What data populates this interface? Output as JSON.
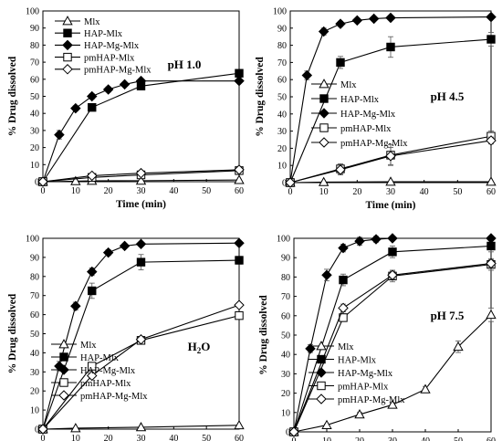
{
  "chart_data": [
    {
      "type": "line",
      "xlabel": "Time (min)",
      "ylabel": "% Drug dissolved",
      "annotation": "pH 1.0",
      "xlim": [
        0,
        60
      ],
      "ylim": [
        0,
        100
      ],
      "xticks": [
        0,
        10,
        20,
        30,
        40,
        50,
        60
      ],
      "yticks": [
        0,
        10,
        20,
        30,
        40,
        50,
        60,
        70,
        80,
        90,
        100
      ],
      "legend_position": "top-left",
      "series": [
        {
          "name": "Mlx",
          "marker": "triangle-open",
          "x": [
            0,
            10,
            15,
            30,
            60
          ],
          "y": [
            0,
            0.3,
            0.5,
            0.6,
            1.0
          ],
          "err": [
            0,
            0,
            0,
            0,
            0
          ]
        },
        {
          "name": "HAP-Mlx",
          "marker": "square-filled",
          "x": [
            0,
            15,
            30,
            60
          ],
          "y": [
            0,
            43.5,
            56,
            63.5
          ],
          "err": [
            0,
            1.5,
            2,
            1.5
          ]
        },
        {
          "name": "HAP-Mg-Mlx",
          "marker": "diamond-filled",
          "x": [
            0,
            5,
            10,
            15,
            20,
            25,
            30,
            60
          ],
          "y": [
            0,
            27.5,
            43,
            50,
            54,
            57,
            59,
            59
          ],
          "err": [
            0,
            2.5,
            1.5,
            1.5,
            1.5,
            1,
            1,
            1
          ]
        },
        {
          "name": "pmHAP-Mlx",
          "marker": "square-open",
          "x": [
            0,
            15,
            30,
            60
          ],
          "y": [
            0,
            2.5,
            4,
            6.5
          ],
          "err": [
            0,
            0.5,
            0.5,
            0.5
          ]
        },
        {
          "name": "pmHAP-Mg-Mlx",
          "marker": "diamond-open",
          "x": [
            0,
            15,
            30,
            60
          ],
          "y": [
            0,
            3.5,
            5,
            7
          ],
          "err": [
            0,
            0.5,
            0.5,
            0.5
          ]
        }
      ]
    },
    {
      "type": "line",
      "xlabel": "Time (min)",
      "ylabel": "% Drug dissolved",
      "annotation": "pH 4.5",
      "xlim": [
        0,
        60
      ],
      "ylim": [
        0,
        100
      ],
      "xticks": [
        0,
        10,
        20,
        30,
        40,
        50,
        60
      ],
      "yticks": [
        0,
        10,
        20,
        30,
        40,
        50,
        60,
        70,
        80,
        90,
        100
      ],
      "legend_position": "right",
      "series": [
        {
          "name": "Mlx",
          "marker": "triangle-open",
          "x": [
            0,
            10,
            30,
            60
          ],
          "y": [
            0,
            0.3,
            0.5,
            0.5
          ],
          "err": [
            0,
            0,
            0,
            0
          ]
        },
        {
          "name": "HAP-Mlx",
          "marker": "square-filled",
          "x": [
            0,
            15,
            30,
            60
          ],
          "y": [
            0,
            70,
            79,
            83.5
          ],
          "err": [
            0,
            3.5,
            6,
            4
          ]
        },
        {
          "name": "HAP-Mg-Mlx",
          "marker": "diamond-filled",
          "x": [
            0,
            5,
            10,
            15,
            20,
            25,
            30,
            60
          ],
          "y": [
            0,
            62.5,
            88,
            92.5,
            94.5,
            95.5,
            96,
            96.5
          ],
          "err": [
            0,
            2.5,
            2,
            1.5,
            1,
            1,
            1,
            1
          ]
        },
        {
          "name": "pmHAP-Mlx",
          "marker": "square-open",
          "x": [
            0,
            15,
            30,
            60
          ],
          "y": [
            0,
            8,
            16,
            27
          ],
          "err": [
            0,
            3,
            6,
            3
          ]
        },
        {
          "name": "pmHAP-Mg-Mlx",
          "marker": "diamond-open",
          "x": [
            0,
            15,
            30,
            60
          ],
          "y": [
            0,
            7.5,
            15.5,
            24.5
          ],
          "err": [
            0,
            3,
            5,
            2
          ]
        }
      ]
    },
    {
      "type": "line",
      "xlabel": "Time (min)",
      "ylabel": "% Drug dissolved",
      "annotation": "H2O",
      "xlim": [
        0,
        60
      ],
      "ylim": [
        0,
        100
      ],
      "xticks": [
        0,
        10,
        20,
        30,
        40,
        50,
        60
      ],
      "yticks": [
        0,
        10,
        20,
        30,
        40,
        50,
        60,
        70,
        80,
        90,
        100
      ],
      "legend_position": "bottom-right",
      "series": [
        {
          "name": "Mlx",
          "marker": "triangle-open",
          "x": [
            0,
            10,
            30,
            60
          ],
          "y": [
            0,
            0.5,
            1,
            2
          ],
          "err": [
            0,
            0,
            0,
            0
          ]
        },
        {
          "name": "HAP-Mlx",
          "marker": "square-filled",
          "x": [
            0,
            15,
            30,
            60
          ],
          "y": [
            0,
            72.5,
            87.5,
            88.5
          ],
          "err": [
            0,
            4,
            4,
            2
          ]
        },
        {
          "name": "HAP-Mg-Mlx",
          "marker": "diamond-filled",
          "x": [
            0,
            5,
            10,
            15,
            20,
            25,
            30,
            60
          ],
          "y": [
            0,
            33,
            64.5,
            82.5,
            92.5,
            96,
            97,
            97.5
          ],
          "err": [
            0,
            2.5,
            2,
            2,
            1.5,
            1,
            1,
            1
          ]
        },
        {
          "name": "pmHAP-Mlx",
          "marker": "square-open",
          "x": [
            0,
            15,
            30,
            60
          ],
          "y": [
            0,
            33,
            46.5,
            59.5
          ],
          "err": [
            0,
            1,
            1,
            1
          ]
        },
        {
          "name": "pmHAP-Mg-Mlx",
          "marker": "diamond-open",
          "x": [
            0,
            15,
            30,
            60
          ],
          "y": [
            0,
            28,
            47,
            65
          ],
          "err": [
            0,
            1,
            1,
            1
          ]
        }
      ]
    },
    {
      "type": "line",
      "xlabel": "Time (min)",
      "ylabel": "% Drug dissolved",
      "annotation": "pH 7.5",
      "xlim": [
        0,
        60
      ],
      "ylim": [
        0,
        100
      ],
      "xticks": [
        0,
        10,
        20,
        30,
        40,
        50,
        60
      ],
      "yticks": [
        0,
        10,
        20,
        30,
        40,
        50,
        60,
        70,
        80,
        90,
        100
      ],
      "legend_position": "bottom-right",
      "series": [
        {
          "name": "Mlx",
          "marker": "triangle-open",
          "x": [
            0,
            10,
            20,
            30,
            40,
            50,
            60
          ],
          "y": [
            0,
            3.5,
            9,
            14,
            22,
            44,
            60.5
          ],
          "err": [
            0,
            0.5,
            1,
            1,
            1.5,
            3,
            3.5
          ]
        },
        {
          "name": "HAP-Mlx",
          "marker": "square-filled",
          "x": [
            0,
            15,
            30,
            60
          ],
          "y": [
            0,
            78.5,
            93,
            96
          ],
          "err": [
            0,
            3,
            3,
            3
          ]
        },
        {
          "name": "HAP-Mg-Mlx",
          "marker": "diamond-filled",
          "x": [
            0,
            5,
            10,
            15,
            20,
            25,
            30,
            60
          ],
          "y": [
            0,
            43,
            81,
            95,
            98.5,
            99.5,
            100,
            100
          ],
          "err": [
            0,
            2,
            3,
            2,
            2,
            1.5,
            1,
            1
          ]
        },
        {
          "name": "pmHAP-Mlx",
          "marker": "square-open",
          "x": [
            0,
            15,
            30,
            60
          ],
          "y": [
            0,
            59,
            80.5,
            86.5
          ],
          "err": [
            0,
            2,
            3,
            3
          ]
        },
        {
          "name": "pmHAP-Mg-Mlx",
          "marker": "diamond-open",
          "x": [
            0,
            15,
            30,
            60
          ],
          "y": [
            0,
            64,
            81,
            87
          ],
          "err": [
            0,
            2,
            2,
            2
          ]
        }
      ]
    }
  ]
}
